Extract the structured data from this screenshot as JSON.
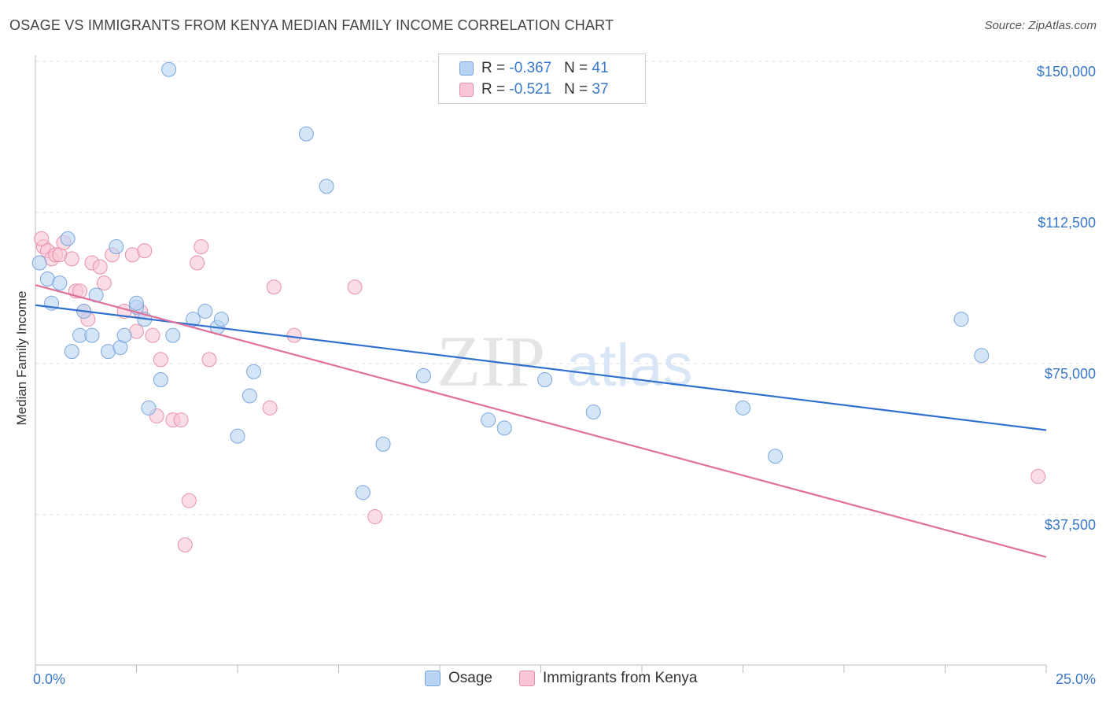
{
  "title": "OSAGE VS IMMIGRANTS FROM KENYA MEDIAN FAMILY INCOME CORRELATION CHART",
  "source": "Source: ZipAtlas.com",
  "watermark": {
    "zip": "ZIP",
    "atlas": "atlas"
  },
  "legend": {
    "rows": [
      {
        "r_label": "R =",
        "r_value": "-0.367",
        "n_label": "N =",
        "n_value": "41"
      },
      {
        "r_label": "R =",
        "r_value": "-0.521",
        "n_label": "N =",
        "n_value": "37"
      }
    ]
  },
  "colors": {
    "osage_fill": "#b9d3f3",
    "osage_stroke": "#7aa6dc",
    "osage_line": "#2f6fcf",
    "kenya_fill": "#f8c6d4",
    "kenya_stroke": "#e890ab",
    "kenya_line": "#e0709a"
  },
  "chart_data": {
    "type": "scatter",
    "xlabel": "",
    "ylabel": "Median Family Income",
    "x_tick_labels": [
      "0.0%",
      "25.0%"
    ],
    "y_tick_labels": [
      "$150,000",
      "$112,500",
      "$75,000",
      "$37,500"
    ],
    "y_ticks": [
      150000,
      112500,
      75000,
      37500
    ],
    "xlim": [
      0,
      25
    ],
    "ylim": [
      0,
      155000
    ],
    "grid": true,
    "series": [
      {
        "name": "Osage",
        "points": [
          [
            0.1,
            100000
          ],
          [
            0.3,
            96000
          ],
          [
            0.4,
            90000
          ],
          [
            0.6,
            95000
          ],
          [
            0.8,
            106000
          ],
          [
            0.9,
            78000
          ],
          [
            1.1,
            82000
          ],
          [
            1.2,
            88000
          ],
          [
            1.4,
            82000
          ],
          [
            1.5,
            92000
          ],
          [
            1.8,
            78000
          ],
          [
            2.0,
            104000
          ],
          [
            2.1,
            79000
          ],
          [
            2.2,
            82000
          ],
          [
            2.5,
            89000
          ],
          [
            2.5,
            90000
          ],
          [
            2.7,
            86000
          ],
          [
            2.8,
            64000
          ],
          [
            3.1,
            71000
          ],
          [
            3.3,
            148000
          ],
          [
            3.4,
            82000
          ],
          [
            3.9,
            86000
          ],
          [
            4.2,
            88000
          ],
          [
            4.5,
            84000
          ],
          [
            4.6,
            86000
          ],
          [
            5.0,
            57000
          ],
          [
            5.3,
            67000
          ],
          [
            5.4,
            73000
          ],
          [
            6.7,
            132000
          ],
          [
            7.2,
            119000
          ],
          [
            8.1,
            43000
          ],
          [
            8.6,
            55000
          ],
          [
            9.6,
            72000
          ],
          [
            11.2,
            61000
          ],
          [
            11.6,
            59000
          ],
          [
            12.6,
            71000
          ],
          [
            13.8,
            63000
          ],
          [
            17.5,
            64000
          ],
          [
            18.3,
            52000
          ],
          [
            22.9,
            86000
          ],
          [
            23.4,
            77000
          ]
        ],
        "trend": [
          [
            0,
            89500
          ],
          [
            25,
            58500
          ]
        ]
      },
      {
        "name": "Immigrants from Kenya",
        "points": [
          [
            0.2,
            104000
          ],
          [
            0.3,
            103000
          ],
          [
            0.4,
            101000
          ],
          [
            0.5,
            102000
          ],
          [
            0.6,
            102000
          ],
          [
            0.7,
            105000
          ],
          [
            0.9,
            101000
          ],
          [
            1.0,
            93000
          ],
          [
            1.1,
            93000
          ],
          [
            1.2,
            88000
          ],
          [
            1.3,
            86000
          ],
          [
            1.4,
            100000
          ],
          [
            1.6,
            99000
          ],
          [
            1.7,
            95000
          ],
          [
            1.9,
            102000
          ],
          [
            2.2,
            88000
          ],
          [
            2.4,
            102000
          ],
          [
            2.5,
            83000
          ],
          [
            2.6,
            88000
          ],
          [
            2.7,
            103000
          ],
          [
            2.9,
            82000
          ],
          [
            3.0,
            62000
          ],
          [
            3.1,
            76000
          ],
          [
            3.4,
            61000
          ],
          [
            3.6,
            61000
          ],
          [
            3.7,
            30000
          ],
          [
            3.8,
            41000
          ],
          [
            4.0,
            100000
          ],
          [
            4.1,
            104000
          ],
          [
            4.3,
            76000
          ],
          [
            5.8,
            64000
          ],
          [
            5.9,
            94000
          ],
          [
            6.4,
            82000
          ],
          [
            7.9,
            94000
          ],
          [
            8.4,
            37000
          ],
          [
            24.8,
            47000
          ],
          [
            0.15,
            106000
          ]
        ],
        "trend": [
          [
            0,
            94500
          ],
          [
            25,
            27000
          ]
        ]
      }
    ]
  }
}
